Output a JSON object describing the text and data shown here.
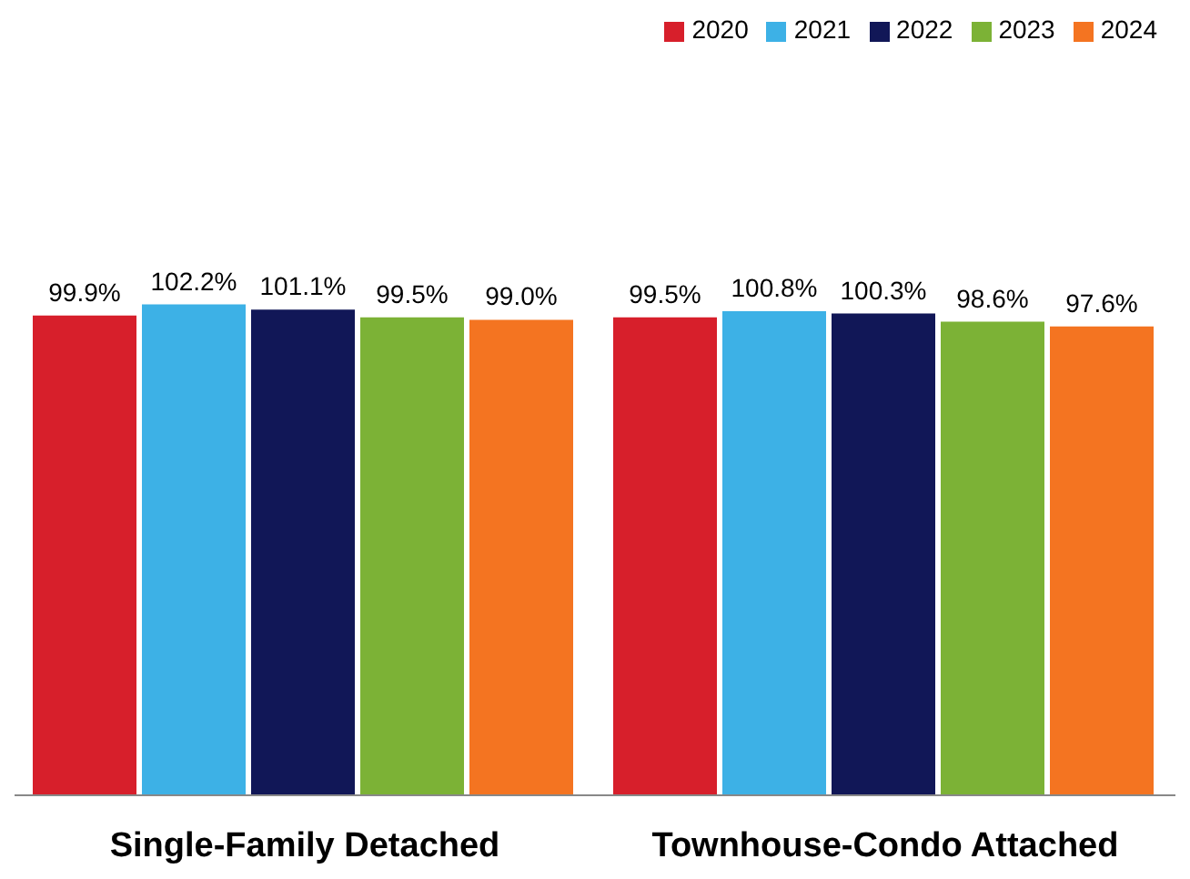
{
  "chart_data": {
    "type": "bar",
    "categories": [
      "Single-Family Detached",
      "Townhouse-Condo Attached"
    ],
    "series": [
      {
        "name": "2020",
        "color": "#d71f2b",
        "values": [
          99.9,
          99.5
        ],
        "value_labels": [
          "99.9%",
          "99.5%"
        ]
      },
      {
        "name": "2021",
        "color": "#3db1e6",
        "values": [
          102.2,
          100.8
        ],
        "value_labels": [
          "102.2%",
          "100.8%"
        ]
      },
      {
        "name": "2022",
        "color": "#111757",
        "values": [
          101.1,
          100.3
        ],
        "value_labels": [
          "101.1%",
          "100.3%"
        ]
      },
      {
        "name": "2023",
        "color": "#7cb236",
        "values": [
          99.5,
          98.6
        ],
        "value_labels": [
          "99.5%",
          "98.6%"
        ]
      },
      {
        "name": "2024",
        "color": "#f47421",
        "values": [
          99.0,
          97.6
        ],
        "value_labels": [
          "99.0%",
          "97.6%"
        ]
      }
    ],
    "legend": "top right",
    "tick_labels": "x",
    "grid": false
  }
}
